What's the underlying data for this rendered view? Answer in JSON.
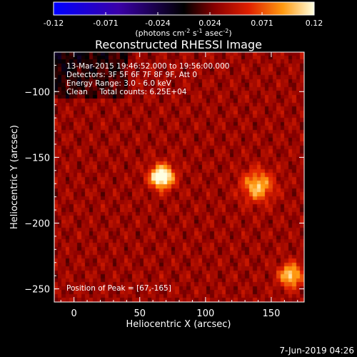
{
  "chart_data": {
    "type": "heatmap",
    "title": "Reconstructed RHESSI Image",
    "xlabel": "Heliocentric X (arcsec)",
    "ylabel": "Heliocentric Y (arcsec)",
    "xlim": [
      -15,
      175
    ],
    "ylim": [
      -260,
      -70
    ],
    "x_ticks": [
      0,
      50,
      100,
      150
    ],
    "y_ticks": [
      -100,
      -150,
      -200,
      -250
    ],
    "colorbar": {
      "ticks": [
        "-0.12",
        "-0.071",
        "-0.024",
        "0.024",
        "0.071",
        "0.12"
      ],
      "range": [
        -0.12,
        0.12
      ],
      "units_text": "(photons cm",
      "units_exp1": "-2",
      "units_mid": " s",
      "units_exp2": "-1",
      "units_end": " asec",
      "units_exp3": "-2",
      "units_close": ")"
    },
    "annotations": {
      "time_range": "13-Mar-2015 19:46:52.000 to 19:56:00.000",
      "detectors": "Detectors: 3F 5F 6F 7F 8F 9F, Att 0",
      "energy_range": "Energy Range: 3.0 - 6.0 keV",
      "method": "Clean     Total counts: 6.25E+04",
      "peak_position": "Position of Peak = [67,-165]"
    },
    "peak": [
      67,
      -165
    ],
    "sources": [
      {
        "x": 67,
        "y": -165,
        "sigma": 6,
        "amp": 0.12
      },
      {
        "x": 140,
        "y": -172,
        "sigma": 8,
        "amp": 0.07
      },
      {
        "x": 165,
        "y": -240,
        "sigma": 6,
        "amp": 0.08
      }
    ],
    "grid": false
  },
  "footer": {
    "date": "7-Jun-2019 04:26"
  }
}
